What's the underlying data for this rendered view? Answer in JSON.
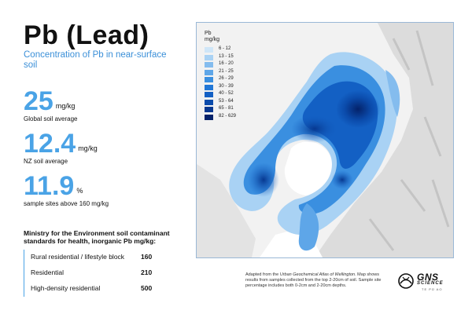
{
  "title": "Pb (Lead)",
  "subtitle": "Concentration of Pb in near-surface soil",
  "stats": [
    {
      "value": "25",
      "unit": "mg/kg",
      "label": "Global soil average"
    },
    {
      "value": "12.4",
      "unit": "mg/kg",
      "label": "NZ soil average"
    },
    {
      "value": "11.9",
      "unit": "%",
      "label": "sample sites above 160 mg/kg"
    }
  ],
  "standards": {
    "heading": "Ministry for the Environment soil contaminant standards for health, inorganic Pb mg/kg:",
    "rows": [
      {
        "name": "Rural residential / lifestyle block",
        "value": "160"
      },
      {
        "name": "Residential",
        "value": "210"
      },
      {
        "name": "High-density residential",
        "value": "500"
      }
    ]
  },
  "legend": {
    "title": "Pb mg/kg",
    "items": [
      {
        "label": "6 - 12",
        "color": "#cfe6f8"
      },
      {
        "label": "13 - 15",
        "color": "#a9d2f4"
      },
      {
        "label": "16 - 20",
        "color": "#84bcee"
      },
      {
        "label": "21 - 25",
        "color": "#5ea6e8"
      },
      {
        "label": "26 - 29",
        "color": "#3a8fe0"
      },
      {
        "label": "30 - 39",
        "color": "#2177d6"
      },
      {
        "label": "40 - 52",
        "color": "#1360c4"
      },
      {
        "label": "53 - 64",
        "color": "#0b4bab"
      },
      {
        "label": "65 - 81",
        "color": "#073890"
      },
      {
        "label": "82 - 629",
        "color": "#04226a"
      }
    ]
  },
  "attribution": {
    "prefix": "Adapted from the ",
    "source": "Urban Geochemical Atlas of Wellington",
    "suffix": ". Map shows results from samples collected from the top 2-20cm of soil. Sample site percentage includes both 0-2cm and 2-20cm depths."
  },
  "logo": {
    "name": "GNS",
    "science": "SCIENCE",
    "maori": "TE PŪ AO"
  }
}
